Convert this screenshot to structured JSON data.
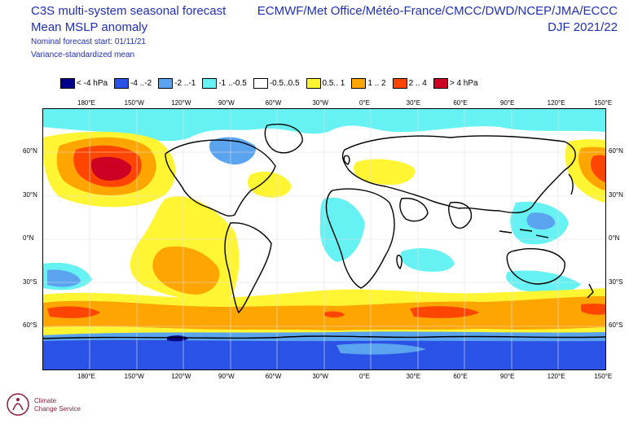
{
  "header": {
    "title": "C3S multi-system seasonal forecast",
    "variable": "Mean MSLP anomaly",
    "start": "Nominal forecast start: 01/11/21",
    "method": "Variance-standardized mean",
    "centres": "ECMWF/Met Office/Météo-France/CMCC/DWD/NCEP/JMA/ECCC",
    "season": "DJF 2021/22"
  },
  "legend": [
    {
      "label": "< -4 hPa",
      "color": "#00008b"
    },
    {
      "label": "-4 ..-2",
      "color": "#2b52e6"
    },
    {
      "label": "-2 ..-1",
      "color": "#5aa4ef"
    },
    {
      "label": "-1 ..-0.5",
      "color": "#66f2f2"
    },
    {
      "label": "-0.5..0.5",
      "color": "#ffffff"
    },
    {
      "label": "0.5.. 1",
      "color": "#fff533"
    },
    {
      "label": "1 .. 2",
      "color": "#ffa500"
    },
    {
      "label": "2 .. 4",
      "color": "#ff4500"
    },
    {
      "label": "> 4 hPa",
      "color": "#cc0022"
    }
  ],
  "axes": {
    "lon_labels": [
      "180°E",
      "150°W",
      "120°W",
      "90°W",
      "60°W",
      "30°W",
      "0°E",
      "30°E",
      "60°E",
      "90°E",
      "120°E",
      "150°E"
    ],
    "lat_labels": [
      "60°N",
      "30°N",
      "0°N",
      "30°S",
      "60°S"
    ]
  },
  "logo": {
    "line1": "Climate",
    "line2": "Change Service"
  }
}
